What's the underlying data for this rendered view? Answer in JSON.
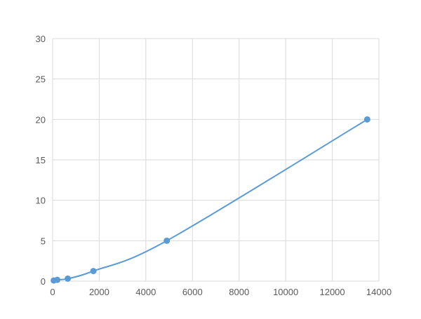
{
  "chart_data": {
    "type": "scatter",
    "title": "",
    "xlabel": "",
    "ylabel": "",
    "xlim": [
      0,
      14000
    ],
    "ylim": [
      0,
      30
    ],
    "grid": true,
    "legend": "none",
    "x_ticks": [
      "0",
      "2000",
      "4000",
      "6000",
      "8000",
      "10000",
      "12000",
      "14000"
    ],
    "y_ticks": [
      "0",
      "5",
      "10",
      "15",
      "20",
      "25",
      "30"
    ],
    "series": [
      {
        "color": "#5B9BD5",
        "smooth_line": true,
        "x": [
          50,
          200,
          650,
          1750,
          4900,
          13500
        ],
        "y": [
          0.08,
          0.16,
          0.31,
          1.25,
          5,
          20
        ]
      }
    ]
  }
}
